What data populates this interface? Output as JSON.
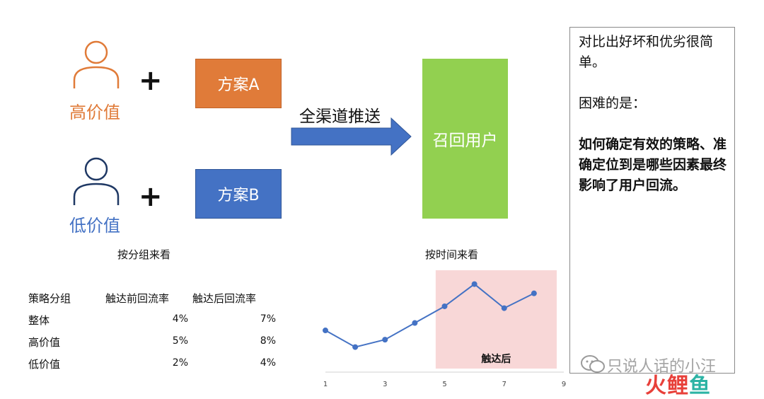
{
  "segments": [
    {
      "label": "高价值",
      "color": "#E07B39",
      "plan": "方案A",
      "plan_color": "#E07B39"
    },
    {
      "label": "低价值",
      "color": "#4472C4",
      "plan": "方案B",
      "plan_color": "#4472C4"
    }
  ],
  "plus_sign": "+",
  "channel": {
    "label": "全渠道推送",
    "arrow_color": "#4472C4"
  },
  "recall": {
    "label": "召回用户",
    "color": "#92D050"
  },
  "group_caption": "按分组来看",
  "time_caption": "按时间来看",
  "table": {
    "headers": [
      "策略分组",
      "触达前回流率",
      "触达后回流率"
    ],
    "rows": [
      [
        "整体",
        "4%",
        "7%"
      ],
      [
        "高价值",
        "5%",
        "8%"
      ],
      [
        "低价值",
        "2%",
        "4%"
      ]
    ]
  },
  "chart_data": {
    "type": "line",
    "x": [
      1,
      2,
      3,
      4,
      5,
      6,
      7,
      8
    ],
    "series": [
      {
        "values": [
          2.1,
          1.2,
          1.6,
          2.5,
          3.4,
          4.6,
          3.3,
          4.1
        ]
      }
    ],
    "xticks": [
      "1",
      "3",
      "5",
      "7",
      "9"
    ],
    "xlim": [
      1,
      9
    ],
    "ylim": [
      0,
      5.5
    ],
    "line_color": "#4472C4",
    "highlight": {
      "label": "触达后",
      "x_start": 4.7,
      "x_end": 9,
      "color": "#F8D7D7"
    },
    "grid": false,
    "legend": "none"
  },
  "note": {
    "line1": "对比出好坏和优劣很简单。",
    "line2": "困难的是：",
    "line3": "如何确定有效的策略、准确定位到是哪些因素最终影响了用户回流。"
  },
  "watermark": {
    "text": "只说人话的小汪"
  },
  "logo": {
    "part1": "火",
    "part2": "鲤",
    "part3": "鱼"
  }
}
